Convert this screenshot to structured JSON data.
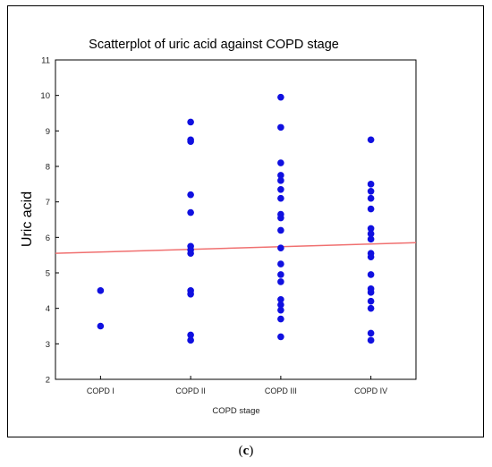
{
  "panel_label": "c",
  "chart_data": {
    "type": "scatter",
    "title": "Scatterplot of uric acid against COPD stage",
    "xlabel": "COPD stage",
    "ylabel": "Uric acid",
    "categories": [
      "COPD I",
      "COPD II",
      "COPD III",
      "COPD IV"
    ],
    "ylim": [
      2,
      11
    ],
    "yticks": [
      2,
      3,
      4,
      5,
      6,
      7,
      8,
      9,
      10,
      11
    ],
    "grid": false,
    "point_color": "#1010e0",
    "line_color": "#f07070",
    "regression_line": {
      "start": 5.55,
      "end": 5.85
    },
    "points": [
      {
        "x": "COPD I",
        "y": 4.5
      },
      {
        "x": "COPD I",
        "y": 3.5
      },
      {
        "x": "COPD II",
        "y": 9.25
      },
      {
        "x": "COPD II",
        "y": 8.75
      },
      {
        "x": "COPD II",
        "y": 8.7
      },
      {
        "x": "COPD II",
        "y": 7.2
      },
      {
        "x": "COPD II",
        "y": 6.7
      },
      {
        "x": "COPD II",
        "y": 5.75
      },
      {
        "x": "COPD II",
        "y": 5.65
      },
      {
        "x": "COPD II",
        "y": 5.55
      },
      {
        "x": "COPD II",
        "y": 4.5
      },
      {
        "x": "COPD II",
        "y": 4.4
      },
      {
        "x": "COPD II",
        "y": 3.25
      },
      {
        "x": "COPD II",
        "y": 3.1
      },
      {
        "x": "COPD III",
        "y": 9.95
      },
      {
        "x": "COPD III",
        "y": 9.1
      },
      {
        "x": "COPD III",
        "y": 8.1
      },
      {
        "x": "COPD III",
        "y": 7.75
      },
      {
        "x": "COPD III",
        "y": 7.6
      },
      {
        "x": "COPD III",
        "y": 7.35
      },
      {
        "x": "COPD III",
        "y": 7.1
      },
      {
        "x": "COPD III",
        "y": 6.65
      },
      {
        "x": "COPD III",
        "y": 6.55
      },
      {
        "x": "COPD III",
        "y": 6.2
      },
      {
        "x": "COPD III",
        "y": 5.7
      },
      {
        "x": "COPD III",
        "y": 5.25
      },
      {
        "x": "COPD III",
        "y": 4.95
      },
      {
        "x": "COPD III",
        "y": 4.75
      },
      {
        "x": "COPD III",
        "y": 4.25
      },
      {
        "x": "COPD III",
        "y": 4.1
      },
      {
        "x": "COPD III",
        "y": 3.95
      },
      {
        "x": "COPD III",
        "y": 3.7
      },
      {
        "x": "COPD III",
        "y": 3.2
      },
      {
        "x": "COPD IV",
        "y": 8.75
      },
      {
        "x": "COPD IV",
        "y": 7.5
      },
      {
        "x": "COPD IV",
        "y": 7.3
      },
      {
        "x": "COPD IV",
        "y": 7.1
      },
      {
        "x": "COPD IV",
        "y": 6.8
      },
      {
        "x": "COPD IV",
        "y": 6.25
      },
      {
        "x": "COPD IV",
        "y": 6.1
      },
      {
        "x": "COPD IV",
        "y": 5.95
      },
      {
        "x": "COPD IV",
        "y": 5.55
      },
      {
        "x": "COPD IV",
        "y": 5.45
      },
      {
        "x": "COPD IV",
        "y": 4.95
      },
      {
        "x": "COPD IV",
        "y": 4.55
      },
      {
        "x": "COPD IV",
        "y": 4.45
      },
      {
        "x": "COPD IV",
        "y": 4.2
      },
      {
        "x": "COPD IV",
        "y": 4.0
      },
      {
        "x": "COPD IV",
        "y": 3.3
      },
      {
        "x": "COPD IV",
        "y": 3.1
      }
    ]
  }
}
